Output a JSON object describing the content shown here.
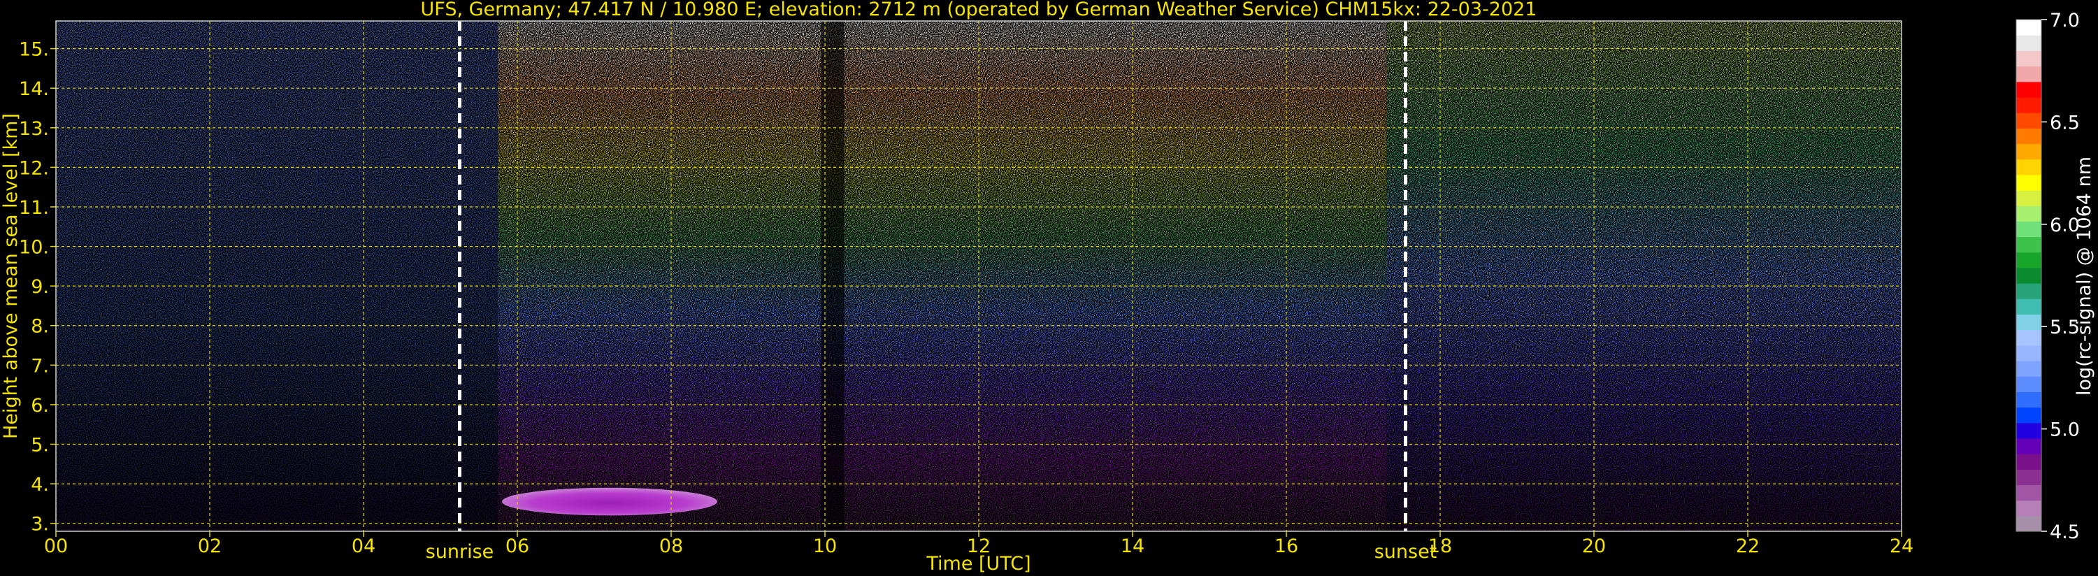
{
  "chart_data": {
    "type": "heatmap",
    "title": "UFS, Germany; 47.417 N / 10.980 E; elevation: 2712 m  (operated by German Weather Service)     CHM15kx: 22-03-2021",
    "xlabel": "Time [UTC]",
    "ylabel": "Height above mean sea level [km]",
    "xlim": [
      0,
      24
    ],
    "ylim": [
      2.8,
      15.7
    ],
    "x_ticks": [
      "00",
      "02",
      "04",
      "06",
      "08",
      "10",
      "12",
      "14",
      "16",
      "18",
      "20",
      "22",
      "24"
    ],
    "y_ticks": [
      "3.",
      "4.",
      "5.",
      "6.",
      "7.",
      "8.",
      "9.",
      "10.",
      "11.",
      "12.",
      "13.",
      "14.",
      "15."
    ],
    "grid": true,
    "annotations": [
      {
        "label": "sunrise",
        "x": 5.25
      },
      {
        "label": "sunset",
        "x": 17.55
      }
    ],
    "colorbar": {
      "label": "log(rc-signal) @ 1064 nm",
      "ticks": [
        "4.5",
        "5.0",
        "5.5",
        "6.0",
        "6.5",
        "7.0"
      ],
      "range": [
        4.5,
        7.0
      ],
      "colors": [
        "#a68fa8",
        "#b67fb8",
        "#a055a5",
        "#8b2f91",
        "#7a0f8a",
        "#6400b8",
        "#2200e0",
        "#0044ff",
        "#2f6dff",
        "#5c8cff",
        "#7ea4ff",
        "#98b6ff",
        "#a8c4ff",
        "#80d0e8",
        "#3ebdb0",
        "#27a37a",
        "#0a8c2e",
        "#17a52a",
        "#3dc24a",
        "#6fe07a",
        "#a8f070",
        "#d8f040",
        "#ffff00",
        "#ffd400",
        "#ffa800",
        "#ff7c00",
        "#ff4a00",
        "#ff1a00",
        "#ff0000",
        "#f0a8a8",
        "#f4c8c8",
        "#e8e8e8",
        "#ffffff"
      ]
    },
    "features": [
      {
        "description": "sunlit background band",
        "x": [
          5.75,
          24
        ]
      },
      {
        "description": "boundary layer aerosol",
        "x": [
          5.8,
          8.6
        ],
        "y": [
          3.2,
          3.9
        ]
      }
    ]
  }
}
